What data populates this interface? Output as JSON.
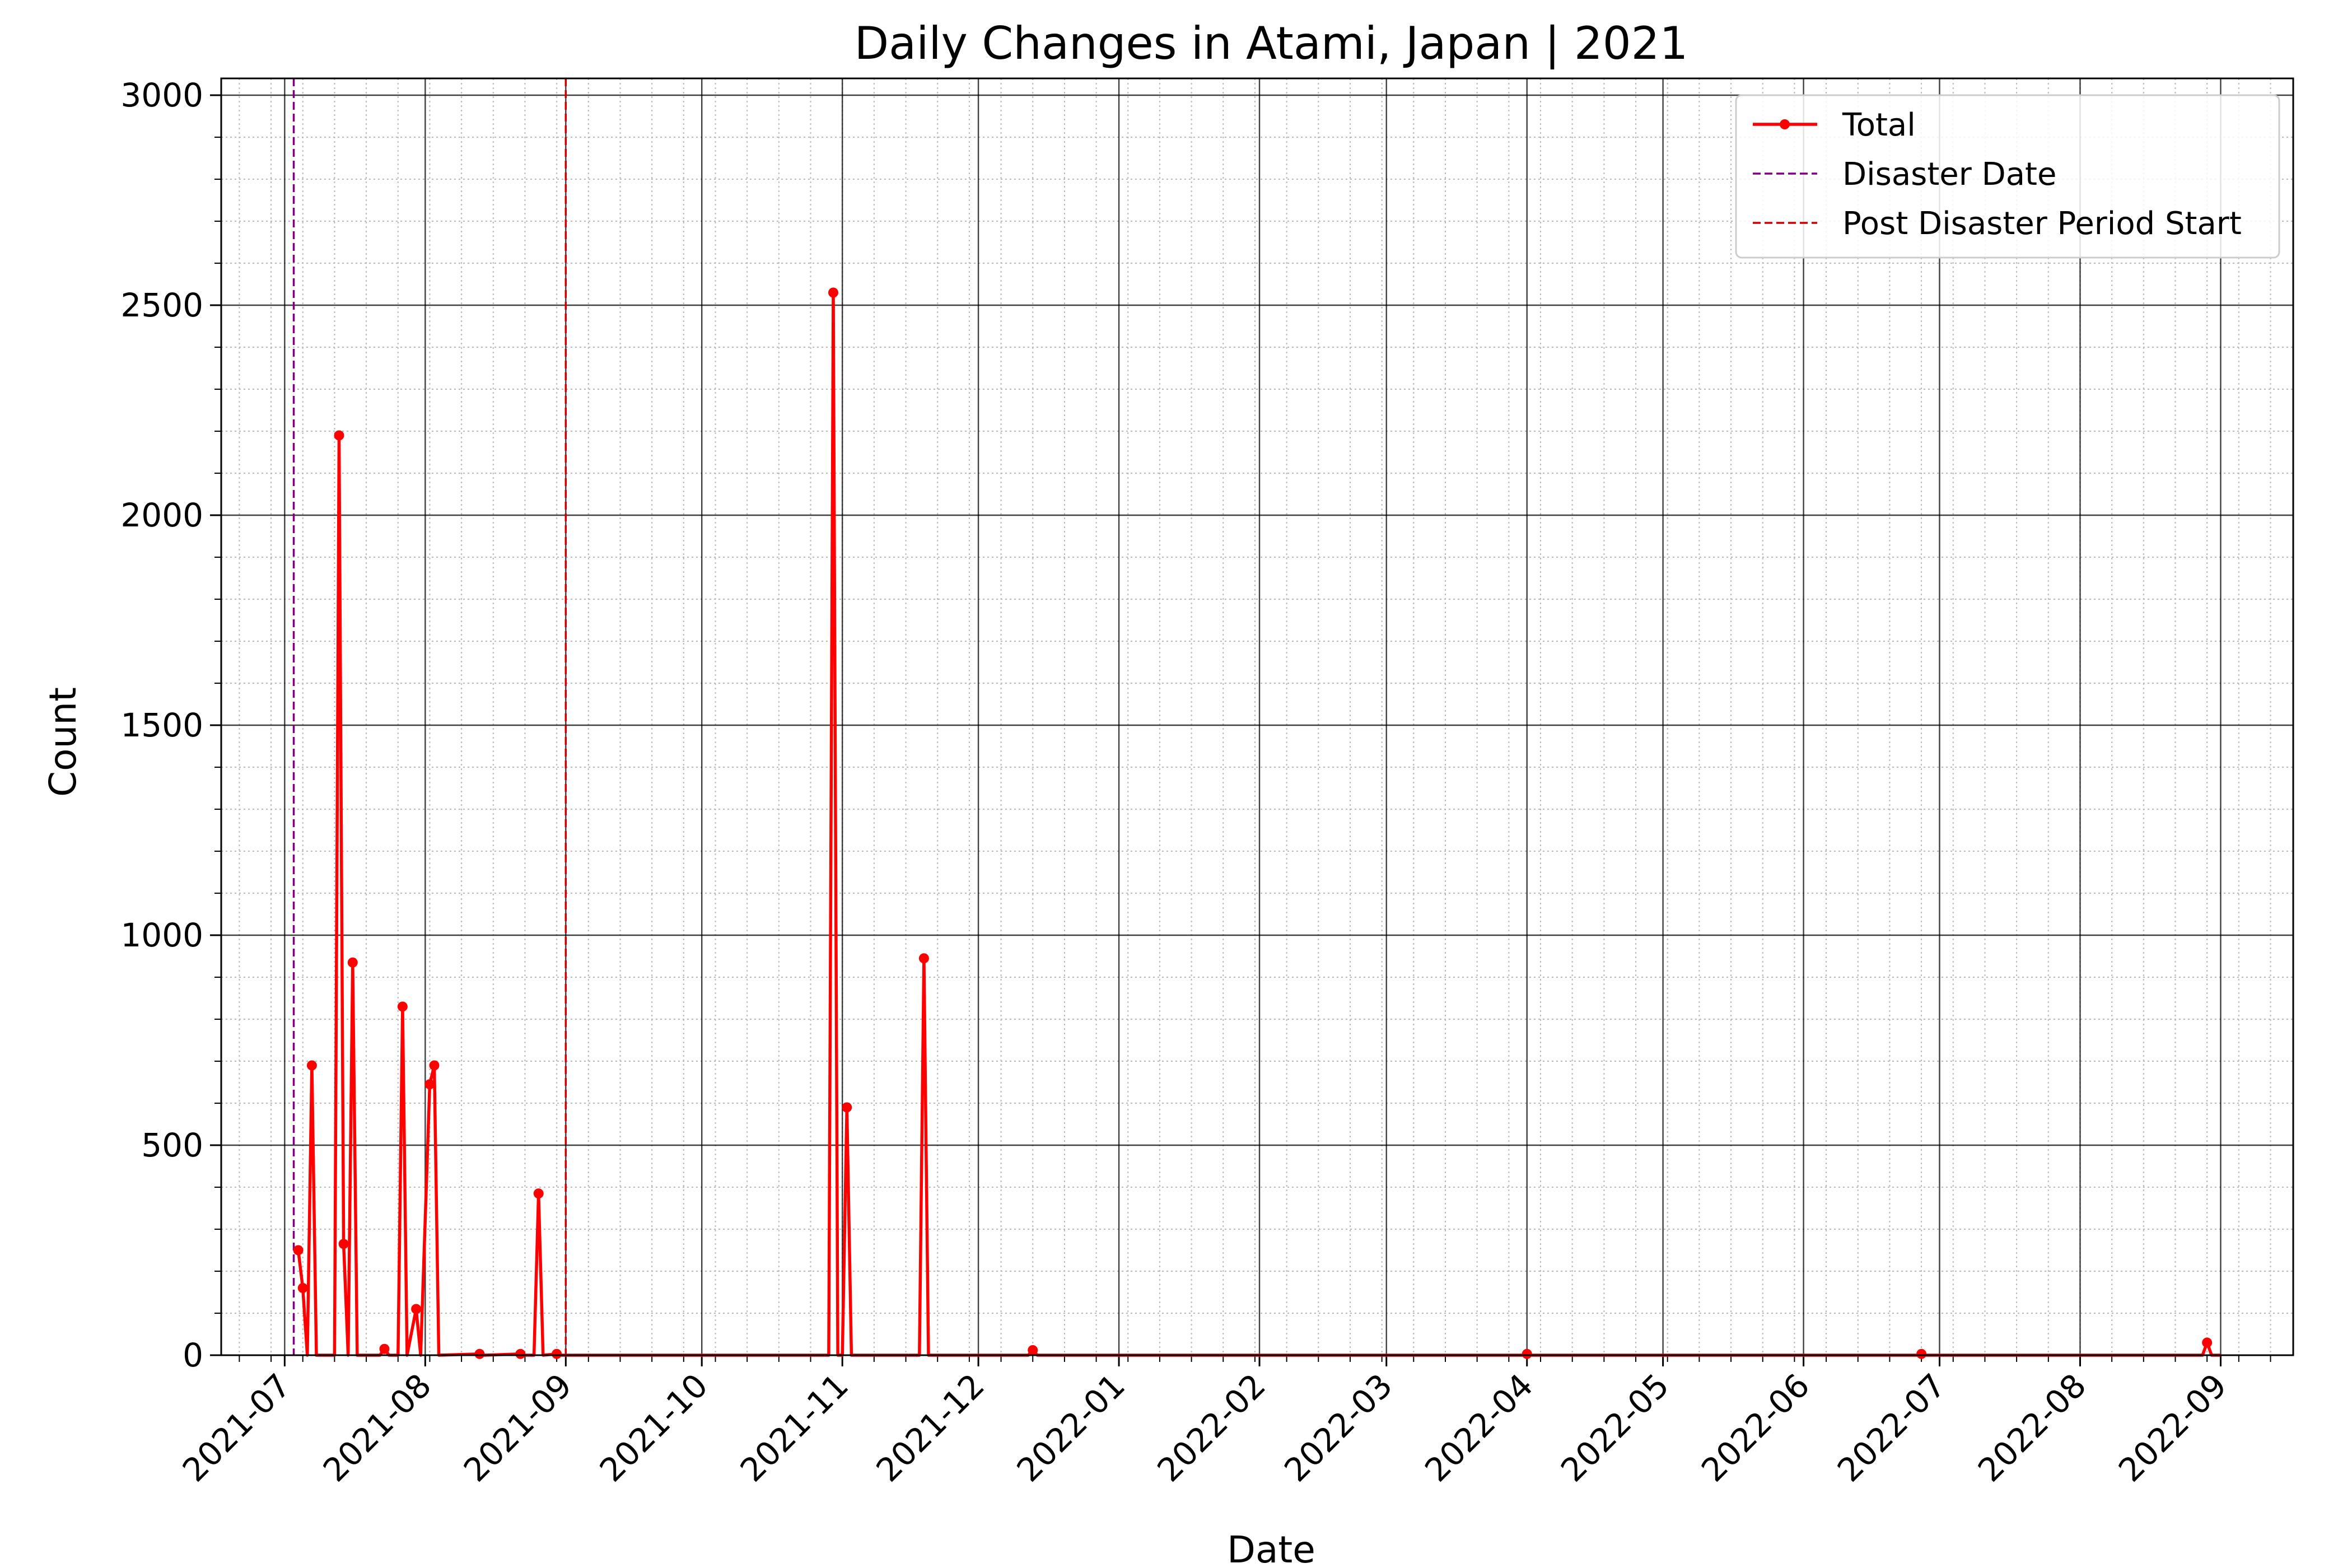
{
  "chart_data": {
    "type": "line",
    "title": "Daily Changes in Atami, Japan | 2021",
    "xlabel": "Date",
    "ylabel": "Count",
    "xlim": [
      "2021-06-17",
      "2022-09-17"
    ],
    "ylim": [
      0,
      3040
    ],
    "y_ticks": [
      0,
      500,
      1000,
      1500,
      2000,
      2500,
      3000
    ],
    "x_ticks": [
      "2021-07",
      "2021-08",
      "2021-09",
      "2021-10",
      "2021-11",
      "2021-12",
      "2022-01",
      "2022-02",
      "2022-03",
      "2022-04",
      "2022-05",
      "2022-06",
      "2022-07",
      "2022-08",
      "2022-09"
    ],
    "grid": true,
    "legend_position": "top-right",
    "series": [
      {
        "name": "Total",
        "color": "#ff0000",
        "points": [
          [
            "2021-07-04",
            250
          ],
          [
            "2021-07-05",
            160
          ],
          [
            "2021-07-06",
            0
          ],
          [
            "2021-07-07",
            690
          ],
          [
            "2021-07-08",
            0
          ],
          [
            "2021-07-12",
            0
          ],
          [
            "2021-07-13",
            2190
          ],
          [
            "2021-07-14",
            265
          ],
          [
            "2021-07-15",
            0
          ],
          [
            "2021-07-16",
            935
          ],
          [
            "2021-07-17",
            0
          ],
          [
            "2021-07-22",
            0
          ],
          [
            "2021-07-23",
            15
          ],
          [
            "2021-07-24",
            0
          ],
          [
            "2021-07-26",
            0
          ],
          [
            "2021-07-27",
            830
          ],
          [
            "2021-07-28",
            0
          ],
          [
            "2021-07-30",
            110
          ],
          [
            "2021-07-31",
            0
          ],
          [
            "2021-08-02",
            645
          ],
          [
            "2021-08-03",
            690
          ],
          [
            "2021-08-04",
            0
          ],
          [
            "2021-08-13",
            3
          ],
          [
            "2021-08-14",
            0
          ],
          [
            "2021-08-22",
            3
          ],
          [
            "2021-08-23",
            0
          ],
          [
            "2021-08-25",
            0
          ],
          [
            "2021-08-26",
            385
          ],
          [
            "2021-08-27",
            0
          ],
          [
            "2021-08-30",
            3
          ],
          [
            "2021-08-31",
            0
          ],
          [
            "2021-10-29",
            0
          ],
          [
            "2021-10-30",
            2530
          ],
          [
            "2021-10-31",
            0
          ],
          [
            "2021-11-01",
            0
          ],
          [
            "2021-11-02",
            590
          ],
          [
            "2021-11-03",
            0
          ],
          [
            "2021-11-18",
            0
          ],
          [
            "2021-11-19",
            945
          ],
          [
            "2021-11-20",
            0
          ],
          [
            "2021-12-12",
            0
          ],
          [
            "2021-12-13",
            12
          ],
          [
            "2021-12-14",
            0
          ],
          [
            "2022-03-31",
            0
          ],
          [
            "2022-04-01",
            3
          ],
          [
            "2022-04-02",
            0
          ],
          [
            "2022-06-26",
            0
          ],
          [
            "2022-06-27",
            3
          ],
          [
            "2022-06-28",
            0
          ],
          [
            "2022-08-28",
            0
          ],
          [
            "2022-08-29",
            30
          ],
          [
            "2022-08-30",
            0
          ],
          [
            "2022-09-01",
            0
          ]
        ]
      }
    ],
    "vlines": [
      {
        "name": "Disaster Date",
        "x": "2021-07-03",
        "color": "#800080",
        "style": "dashed"
      },
      {
        "name": "Post Disaster Period Start",
        "x": "2021-09-01",
        "color": "#cc0000",
        "style": "dashed"
      }
    ]
  }
}
